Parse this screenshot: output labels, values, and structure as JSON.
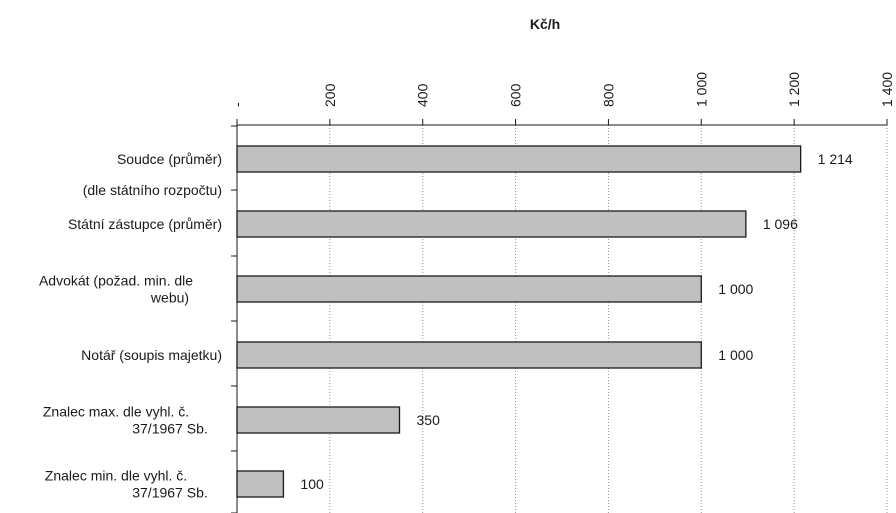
{
  "chart_data": {
    "type": "bar",
    "orientation": "horizontal",
    "title": "",
    "xlabel": "Kč/h",
    "ylabel": "",
    "xlim": [
      0,
      1400
    ],
    "xticks": [
      0,
      200,
      400,
      600,
      800,
      1000,
      1200,
      1400
    ],
    "xtick_labels": [
      "-",
      "200",
      "400",
      "600",
      "800",
      "1 000",
      "1 200",
      "1 400"
    ],
    "axis_position": "top",
    "grid": "vertical dotted",
    "rows": [
      {
        "label": [
          "Soudce (průměr)"
        ],
        "value": 1214,
        "value_label": "1 214"
      },
      {
        "label": [
          "(dle státního rozpočtu)"
        ],
        "value": null,
        "value_label": ""
      },
      {
        "label": [
          "Státní zástupce (průměr)"
        ],
        "value": 1096,
        "value_label": "1 096"
      },
      {
        "label": [
          "Advokát (požad. min. dle",
          "webu)"
        ],
        "value": 1000,
        "value_label": "1 000"
      },
      {
        "label": [
          "Notář (soupis majetku)"
        ],
        "value": 1000,
        "value_label": "1 000"
      },
      {
        "label": [
          "Znalec max. dle vyhl. č.",
          "37/1967 Sb."
        ],
        "value": 350,
        "value_label": "350"
      },
      {
        "label": [
          "Znalec min. dle vyhl. č.",
          "37/1967 Sb."
        ],
        "value": 100,
        "value_label": "100"
      }
    ],
    "colors": {
      "bar_fill": "#c0c0c0",
      "bar_stroke": "#1a1a1a",
      "grid": "#999999"
    }
  }
}
